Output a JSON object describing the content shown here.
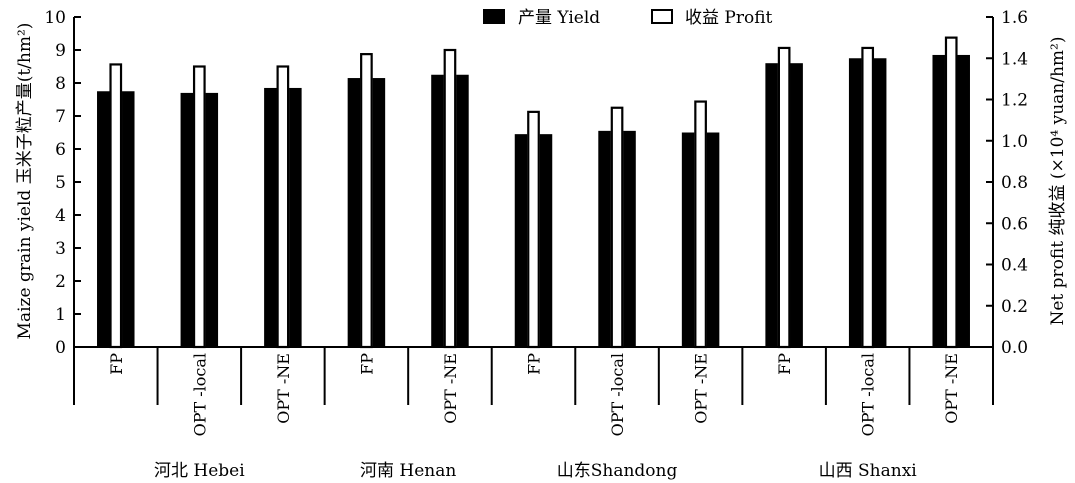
{
  "chart_data": {
    "type": "bar",
    "categories": [
      "FP",
      "OPT -local",
      "OPT -NE",
      "FP",
      "OPT -NE",
      "FP",
      "OPT -local",
      "OPT -NE",
      "FP",
      "OPT -local",
      "OPT -NE"
    ],
    "groups": [
      {
        "label": "河北 Hebei",
        "span": [
          0,
          2
        ]
      },
      {
        "label": "河南 Henan",
        "span": [
          3,
          4
        ]
      },
      {
        "label": "山东Shandong",
        "span": [
          5,
          7
        ]
      },
      {
        "label": "山西 Shanxi",
        "span": [
          8,
          10
        ]
      }
    ],
    "series": [
      {
        "name": "产量 Yield",
        "axis": "left",
        "fill": "#000000",
        "values": [
          7.75,
          7.7,
          7.85,
          8.15,
          8.25,
          6.45,
          6.55,
          6.5,
          8.6,
          8.75,
          8.85
        ]
      },
      {
        "name": "收益 Profit",
        "axis": "right",
        "fill": "#ffffff",
        "values": [
          1.37,
          1.36,
          1.36,
          1.42,
          1.44,
          1.14,
          1.16,
          1.19,
          1.45,
          1.45,
          1.5
        ]
      }
    ],
    "ylabel": "Maize grain yield 玉米子粒产量(t/hm²)",
    "y2label": "Net profit 纯收益 (×10⁴ yuan/hm²)",
    "ylim": [
      0,
      10
    ],
    "y2lim": [
      0,
      1.6
    ],
    "yticks": [
      "0",
      "1",
      "2",
      "3",
      "4",
      "5",
      "6",
      "7",
      "8",
      "9",
      "10"
    ],
    "y2ticks": [
      "0.0",
      "0.2",
      "0.4",
      "0.6",
      "0.8",
      "1.0",
      "1.2",
      "1.4",
      "1.6"
    ],
    "legend_position": "top-center",
    "grid": false
  }
}
